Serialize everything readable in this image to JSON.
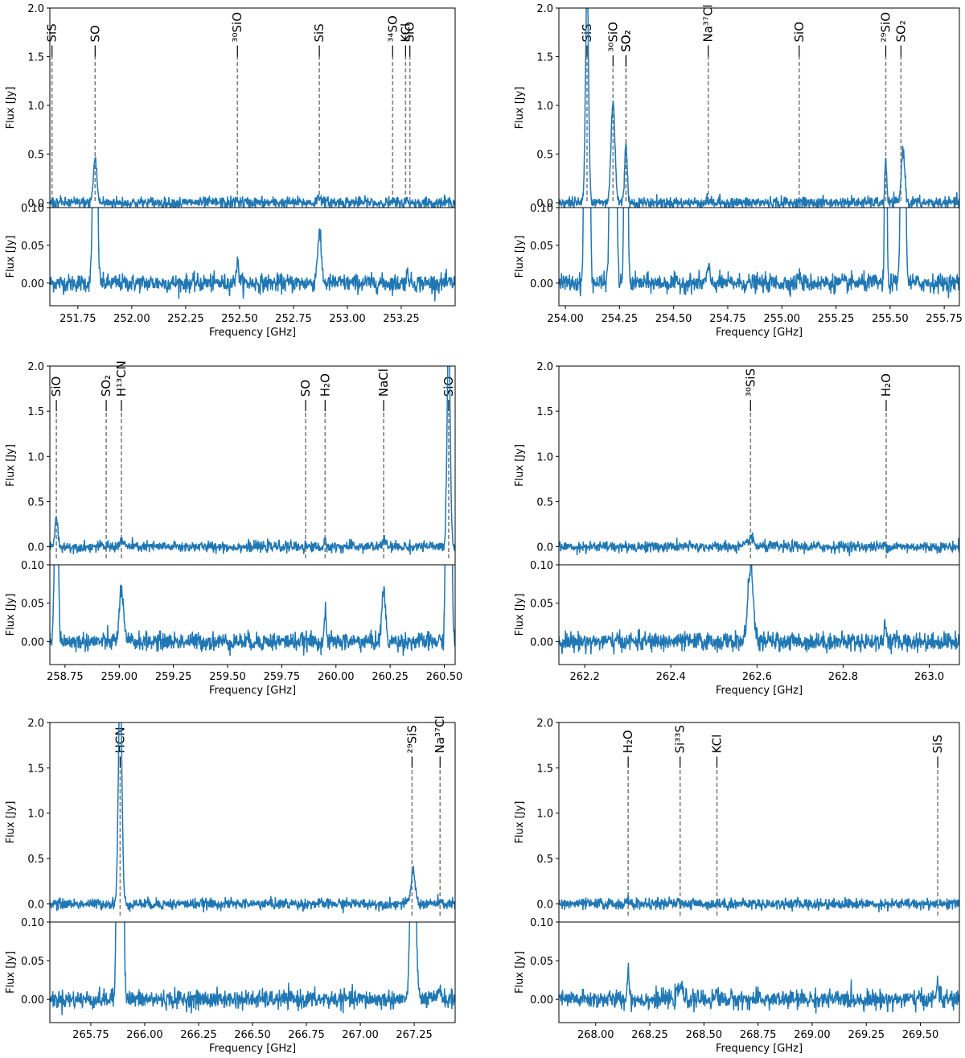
{
  "figure": {
    "flux_label": "Flux [Jy]",
    "freq_label": "Frequency [GHz]",
    "line_color": "#1f77b4",
    "marker_color": "#808080"
  },
  "chart_data": [
    {
      "type": "line",
      "panel": "top-left",
      "title": "",
      "xlabel": "Frequency [GHz]",
      "ylabel": "Flux [Jy]",
      "xlim": [
        251.62,
        253.5
      ],
      "xticks": [
        "251.75",
        "252.00",
        "252.25",
        "252.50",
        "252.75",
        "253.00",
        "253.25"
      ],
      "upper": {
        "ylim": [
          -0.05,
          2.0
        ],
        "yticks": [
          "0.0",
          "0.5",
          "1.0",
          "1.5",
          "2.0"
        ]
      },
      "lower": {
        "ylim": [
          -0.03,
          0.1
        ],
        "yticks": [
          "0.00",
          "0.05",
          "0.10"
        ]
      },
      "lines": [
        {
          "label": "SiS",
          "freq": 251.63,
          "end": 1.5
        },
        {
          "label": "SO",
          "freq": 251.83,
          "end": 1.5
        },
        {
          "label": "³⁰SiO",
          "freq": 252.49,
          "end": 1.5
        },
        {
          "label": "SiS",
          "freq": 252.87,
          "end": 1.5
        },
        {
          "label": "³⁴SO",
          "freq": 253.21,
          "end": 1.5
        },
        {
          "label": "KCl",
          "freq": 253.27,
          "end": 1.5
        },
        {
          "label": "SiO",
          "freq": 253.29,
          "end": 1.5
        }
      ],
      "peaks": [
        {
          "center": 251.83,
          "width": 0.008,
          "amp": 0.45
        },
        {
          "center": 252.49,
          "width": 0.007,
          "amp": 0.025
        },
        {
          "center": 252.87,
          "width": 0.009,
          "amp": 0.065
        },
        {
          "center": 253.28,
          "width": 0.007,
          "amp": 0.012
        }
      ]
    },
    {
      "type": "line",
      "panel": "top-right",
      "title": "",
      "xlabel": "Frequency [GHz]",
      "ylabel": "Flux [Jy]",
      "xlim": [
        253.97,
        255.82
      ],
      "xticks": [
        "254.00",
        "254.25",
        "254.50",
        "254.75",
        "255.00",
        "255.25",
        "255.50",
        "255.75"
      ],
      "upper": {
        "ylim": [
          -0.05,
          2.0
        ],
        "yticks": [
          "0.0",
          "0.5",
          "1.0",
          "1.5",
          "2.0"
        ]
      },
      "lower": {
        "ylim": [
          -0.03,
          0.1
        ],
        "yticks": [
          "0.00",
          "0.05",
          "0.10"
        ]
      },
      "lines": [
        {
          "label": "SiS",
          "freq": 254.1,
          "end": 1.5
        },
        {
          "label": "³⁰SiO",
          "freq": 254.22,
          "end": 1.4
        },
        {
          "label": "SO₂",
          "freq": 254.28,
          "end": 1.4
        },
        {
          "label": "SO₂",
          "freq": 254.28,
          "end": 1.4
        },
        {
          "label": "Na³⁷Cl",
          "freq": 254.66,
          "end": 1.5
        },
        {
          "label": "SiO",
          "freq": 255.08,
          "end": 1.5
        },
        {
          "label": "²⁹SiO",
          "freq": 255.48,
          "end": 1.5
        },
        {
          "label": "SO₂",
          "freq": 255.55,
          "end": 1.5
        }
      ],
      "peaks": [
        {
          "center": 254.1,
          "width": 0.007,
          "amp": 2.3
        },
        {
          "center": 254.22,
          "width": 0.009,
          "amp": 1.05
        },
        {
          "center": 254.28,
          "width": 0.006,
          "amp": 0.6
        },
        {
          "center": 254.66,
          "width": 0.007,
          "amp": 0.018
        },
        {
          "center": 255.08,
          "width": 0.005,
          "amp": 0.012
        },
        {
          "center": 255.48,
          "width": 0.004,
          "amp": 0.45
        },
        {
          "center": 255.56,
          "width": 0.008,
          "amp": 0.55
        }
      ]
    },
    {
      "type": "line",
      "panel": "middle-left",
      "title": "",
      "xlabel": "Frequency [GHz]",
      "ylabel": "Flux [Jy]",
      "xlim": [
        258.68,
        260.55
      ],
      "xticks": [
        "258.75",
        "259.00",
        "259.25",
        "259.50",
        "259.75",
        "260.00",
        "260.25",
        "260.50"
      ],
      "upper": {
        "ylim": [
          -0.2,
          2.0
        ],
        "yticks": [
          "0.0",
          "0.5",
          "1.0",
          "1.5",
          "2.0"
        ]
      },
      "lower": {
        "ylim": [
          -0.03,
          0.1
        ],
        "yticks": [
          "0.00",
          "0.05",
          "0.10"
        ]
      },
      "lines": [
        {
          "label": "SiO",
          "freq": 258.71,
          "end": 1.5
        },
        {
          "label": "SO₂",
          "freq": 258.94,
          "end": 1.5
        },
        {
          "label": "H¹³CN",
          "freq": 259.01,
          "end": 1.5
        },
        {
          "label": "SO",
          "freq": 259.86,
          "end": 1.5
        },
        {
          "label": "H₂O",
          "freq": 259.95,
          "end": 1.5
        },
        {
          "label": "NaCl",
          "freq": 260.22,
          "end": 1.5
        },
        {
          "label": "SiO",
          "freq": 260.52,
          "end": 1.5
        }
      ],
      "peaks": [
        {
          "center": 258.71,
          "width": 0.007,
          "amp": 0.3
        },
        {
          "center": 259.01,
          "width": 0.009,
          "amp": 0.07
        },
        {
          "center": 259.95,
          "width": 0.004,
          "amp": 0.04
        },
        {
          "center": 260.22,
          "width": 0.008,
          "amp": 0.07
        },
        {
          "center": 260.52,
          "width": 0.007,
          "amp": 2.4
        }
      ]
    },
    {
      "type": "line",
      "panel": "middle-right",
      "title": "",
      "xlabel": "Frequency [GHz]",
      "ylabel": "Flux [Jy]",
      "xlim": [
        262.14,
        263.07
      ],
      "xticks": [
        "262.2",
        "262.4",
        "262.6",
        "262.8",
        "263.0"
      ],
      "upper": {
        "ylim": [
          -0.2,
          2.0
        ],
        "yticks": [
          "0.0",
          "0.5",
          "1.0",
          "1.5",
          "2.0"
        ]
      },
      "lower": {
        "ylim": [
          -0.03,
          0.1
        ],
        "yticks": [
          "0.00",
          "0.05",
          "0.10"
        ]
      },
      "lines": [
        {
          "label": "³⁰SiS",
          "freq": 262.585,
          "end": 1.5
        },
        {
          "label": "H₂O",
          "freq": 262.9,
          "end": 1.5
        }
      ],
      "peaks": [
        {
          "center": 262.585,
          "width": 0.006,
          "amp": 0.1
        },
        {
          "center": 262.898,
          "width": 0.003,
          "amp": 0.02
        }
      ]
    },
    {
      "type": "line",
      "panel": "bottom-left",
      "title": "",
      "xlabel": "Frequency [GHz]",
      "ylabel": "Flux [Jy]",
      "xlim": [
        265.56,
        267.44
      ],
      "xticks": [
        "265.75",
        "266.00",
        "266.25",
        "266.50",
        "266.75",
        "267.00",
        "267.25"
      ],
      "upper": {
        "ylim": [
          -0.2,
          2.0
        ],
        "yticks": [
          "0.0",
          "0.5",
          "1.0",
          "1.5",
          "2.0"
        ]
      },
      "lower": {
        "ylim": [
          -0.03,
          0.1
        ],
        "yticks": [
          "0.00",
          "0.05",
          "0.10"
        ]
      },
      "lines": [
        {
          "label": "HCN",
          "freq": 265.886,
          "end": 1.5
        },
        {
          "label": "²⁹SiS",
          "freq": 267.24,
          "end": 1.5
        },
        {
          "label": "Na³⁷Cl",
          "freq": 267.37,
          "end": 1.5
        }
      ],
      "peaks": [
        {
          "center": 265.886,
          "width": 0.008,
          "amp": 2.5
        },
        {
          "center": 267.245,
          "width": 0.01,
          "amp": 0.35
        },
        {
          "center": 267.37,
          "width": 0.006,
          "amp": 0.016
        }
      ]
    },
    {
      "type": "line",
      "panel": "bottom-right",
      "title": "",
      "xlabel": "Frequency [GHz]",
      "ylabel": "Flux [Jy]",
      "xlim": [
        267.83,
        269.68
      ],
      "xticks": [
        "268.00",
        "268.25",
        "268.50",
        "268.75",
        "269.00",
        "269.25",
        "269.50"
      ],
      "upper": {
        "ylim": [
          -0.2,
          2.0
        ],
        "yticks": [
          "0.0",
          "0.5",
          "1.0",
          "1.5",
          "2.0"
        ]
      },
      "lower": {
        "ylim": [
          -0.03,
          0.1
        ],
        "yticks": [
          "0.00",
          "0.05",
          "0.10"
        ]
      },
      "lines": [
        {
          "label": "H₂O",
          "freq": 268.15,
          "end": 1.5
        },
        {
          "label": "Si³³S",
          "freq": 268.39,
          "end": 1.5
        },
        {
          "label": "KCl",
          "freq": 268.56,
          "end": 1.5
        },
        {
          "label": "SiS",
          "freq": 269.58,
          "end": 1.5
        }
      ],
      "peaks": [
        {
          "center": 268.15,
          "width": 0.004,
          "amp": 0.044
        },
        {
          "center": 268.39,
          "width": 0.01,
          "amp": 0.018
        },
        {
          "center": 268.56,
          "width": 0.005,
          "amp": 0.01
        },
        {
          "center": 269.58,
          "width": 0.005,
          "amp": 0.025
        }
      ]
    }
  ]
}
